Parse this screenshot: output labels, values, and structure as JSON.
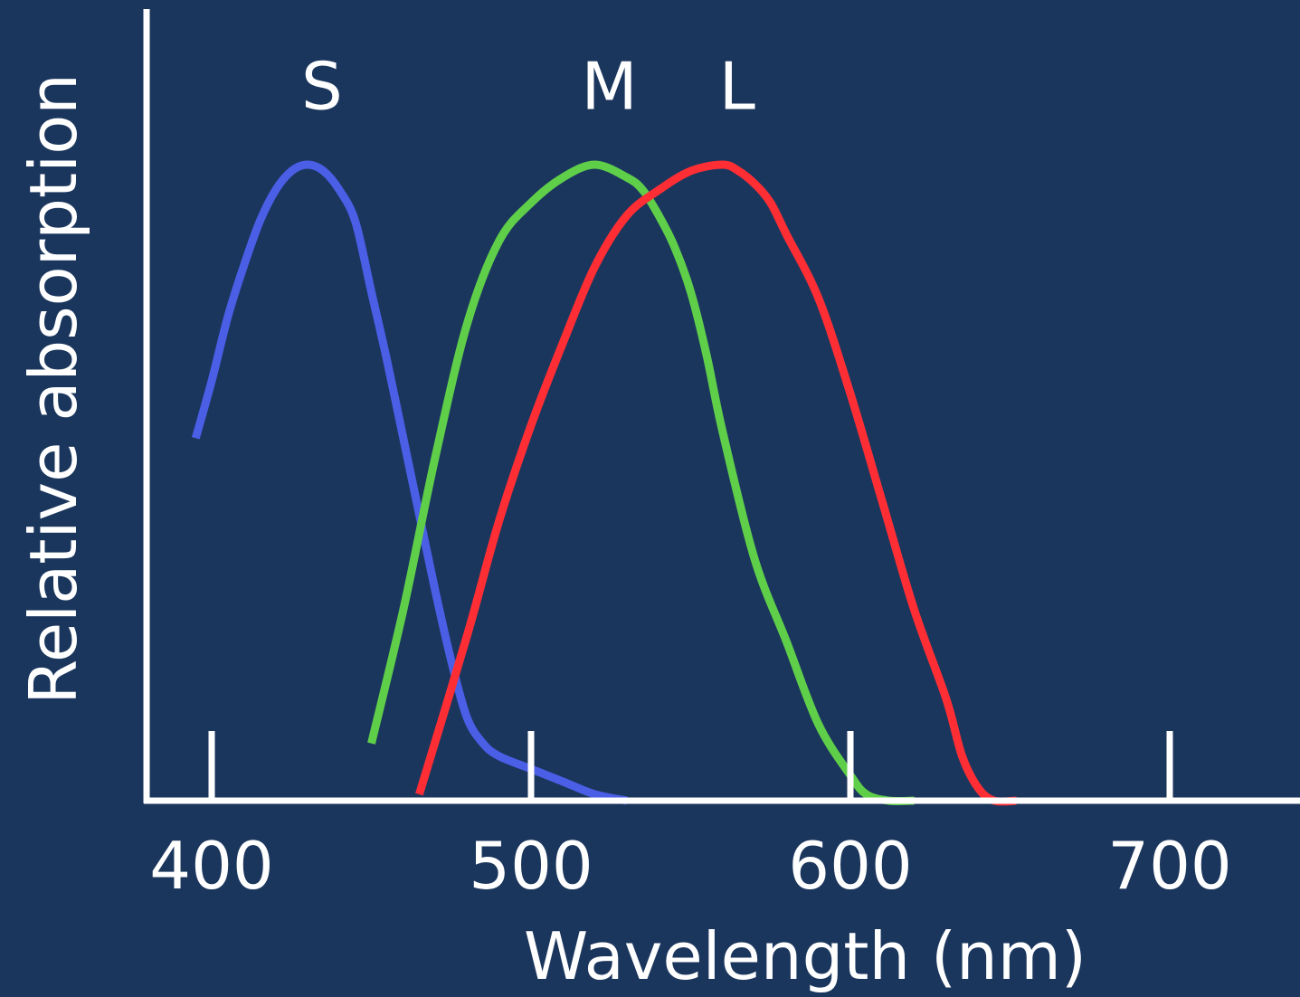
{
  "colors": {
    "background": "#1b365d",
    "axis": "#ffffff",
    "text": "#ffffff"
  },
  "chart_data": {
    "type": "line",
    "xlabel": "Wavelength (nm)",
    "ylabel": "Relative absorption",
    "x_ticks": [
      400,
      500,
      600,
      700
    ],
    "x_tick_labels": [
      "400",
      "500",
      "600",
      "700"
    ],
    "xlim": [
      380,
      730
    ],
    "ylim": [
      0,
      1.0
    ],
    "grid": false,
    "y_ticks_shown": false,
    "series": [
      {
        "name": "S",
        "color": "#4a5ee6",
        "points": [
          [
            395,
            0.57
          ],
          [
            400,
            0.66
          ],
          [
            405,
            0.76
          ],
          [
            410,
            0.84
          ],
          [
            415,
            0.91
          ],
          [
            420,
            0.96
          ],
          [
            425,
            0.99
          ],
          [
            430,
            1.0
          ],
          [
            435,
            0.99
          ],
          [
            440,
            0.96
          ],
          [
            445,
            0.91
          ],
          [
            450,
            0.8
          ],
          [
            455,
            0.69
          ],
          [
            460,
            0.57
          ],
          [
            465,
            0.45
          ],
          [
            470,
            0.33
          ],
          [
            475,
            0.22
          ],
          [
            480,
            0.13
          ],
          [
            485,
            0.09
          ],
          [
            490,
            0.07
          ],
          [
            500,
            0.05
          ],
          [
            510,
            0.03
          ],
          [
            520,
            0.01
          ],
          [
            530,
            0.0
          ]
        ]
      },
      {
        "name": "M",
        "color": "#5fcf4a",
        "points": [
          [
            450,
            0.09
          ],
          [
            460,
            0.3
          ],
          [
            470,
            0.54
          ],
          [
            480,
            0.75
          ],
          [
            490,
            0.88
          ],
          [
            500,
            0.94
          ],
          [
            510,
            0.98
          ],
          [
            520,
            1.0
          ],
          [
            530,
            0.98
          ],
          [
            535,
            0.96
          ],
          [
            540,
            0.92
          ],
          [
            545,
            0.87
          ],
          [
            550,
            0.8
          ],
          [
            555,
            0.7
          ],
          [
            560,
            0.58
          ],
          [
            570,
            0.38
          ],
          [
            580,
            0.25
          ],
          [
            590,
            0.12
          ],
          [
            600,
            0.04
          ],
          [
            605,
            0.01
          ],
          [
            612,
            0.0
          ],
          [
            620,
            0.0
          ]
        ]
      },
      {
        "name": "L",
        "color": "#ff2e34",
        "points": [
          [
            465,
            0.01
          ],
          [
            480,
            0.26
          ],
          [
            490,
            0.44
          ],
          [
            500,
            0.59
          ],
          [
            510,
            0.72
          ],
          [
            520,
            0.84
          ],
          [
            530,
            0.92
          ],
          [
            540,
            0.96
          ],
          [
            550,
            0.99
          ],
          [
            560,
            1.0
          ],
          [
            565,
            0.99
          ],
          [
            570,
            0.97
          ],
          [
            575,
            0.94
          ],
          [
            580,
            0.89
          ],
          [
            590,
            0.79
          ],
          [
            600,
            0.64
          ],
          [
            610,
            0.47
          ],
          [
            620,
            0.3
          ],
          [
            630,
            0.16
          ],
          [
            635,
            0.07
          ],
          [
            640,
            0.02
          ],
          [
            645,
            0.0
          ],
          [
            652,
            0.0
          ]
        ]
      }
    ],
    "series_label_y": 1.13
  }
}
